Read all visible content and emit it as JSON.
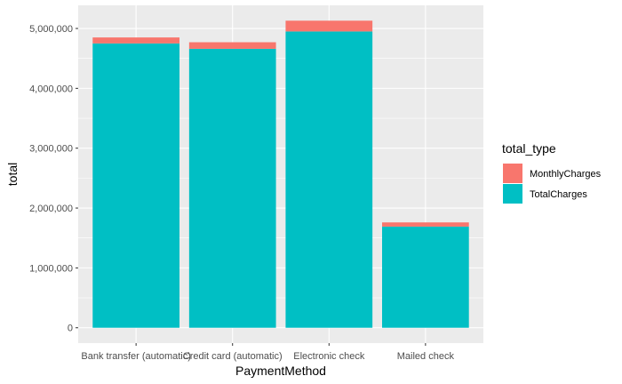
{
  "chart_data": {
    "type": "bar",
    "stacked": true,
    "categories": [
      "Bank transfer (automatic)",
      "Credit card (automatic)",
      "Electronic check",
      "Mailed check"
    ],
    "series": [
      {
        "name": "TotalCharges",
        "color": "#00BFC4",
        "values": [
          4750000,
          4660000,
          4950000,
          1690000
        ]
      },
      {
        "name": "MonthlyCharges",
        "color": "#F8766D",
        "values": [
          100000,
          110000,
          180000,
          70000
        ]
      }
    ],
    "xlabel": "PaymentMethod",
    "ylabel": "total",
    "ylim": [
      0,
      5000000
    ],
    "yticks": [
      0,
      1000000,
      2000000,
      3000000,
      4000000,
      5000000
    ],
    "ytick_labels": [
      "0",
      "1,000,000",
      "2,000,000",
      "3,000,000",
      "4,000,000",
      "5,000,000"
    ],
    "legend": {
      "title": "total_type",
      "position": "right",
      "items": [
        {
          "label": "MonthlyCharges",
          "color": "#F8766D"
        },
        {
          "label": "TotalCharges",
          "color": "#00BFC4"
        }
      ]
    },
    "grid": true,
    "panel_background": "#EBEBEB"
  }
}
